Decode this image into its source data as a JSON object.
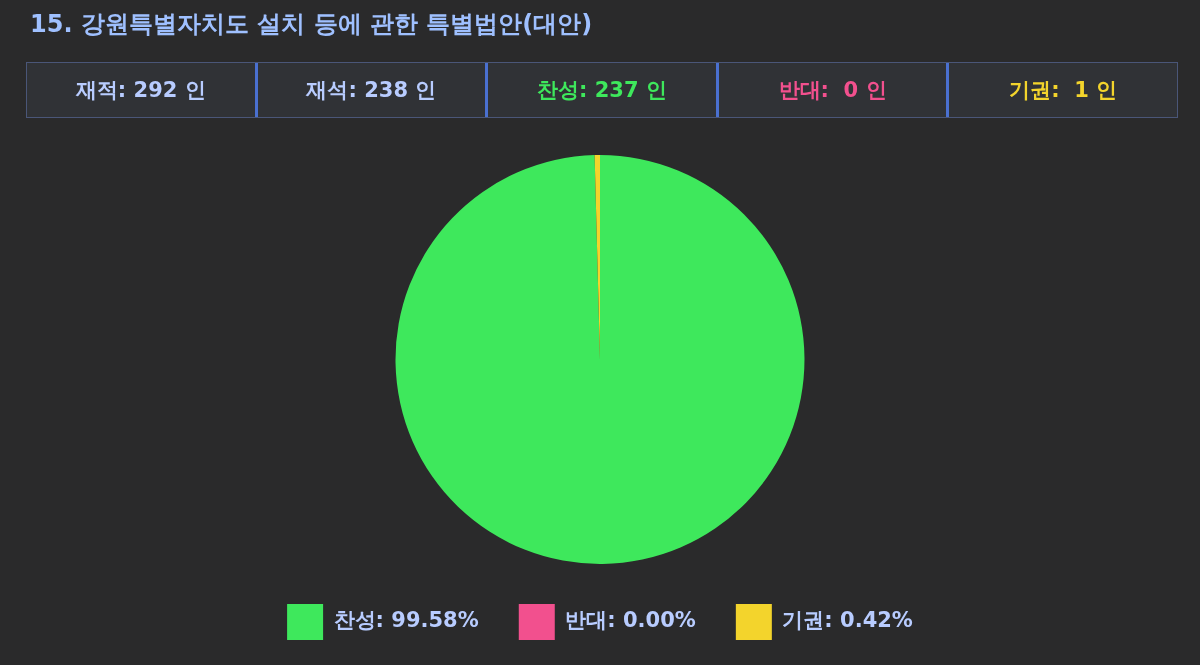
{
  "chart_data": {
    "type": "pie",
    "title": "15. 강원특별자치도 설치 등에 관한 특별법안(대안)",
    "annotations": [
      "재적: 292 인",
      "재석: 238 인",
      "찬성: 237 인",
      "반대:  0 인",
      "기권:  1 인"
    ],
    "categories": [
      "찬성",
      "반대",
      "기권"
    ],
    "values": [
      99.58,
      0.0,
      0.42
    ],
    "value_labels": [
      "99.58%",
      "0.00%",
      "0.42%"
    ],
    "colors": [
      "#3ee85c",
      "#f2508e",
      "#f3d42c"
    ],
    "legend": "bottom"
  }
}
